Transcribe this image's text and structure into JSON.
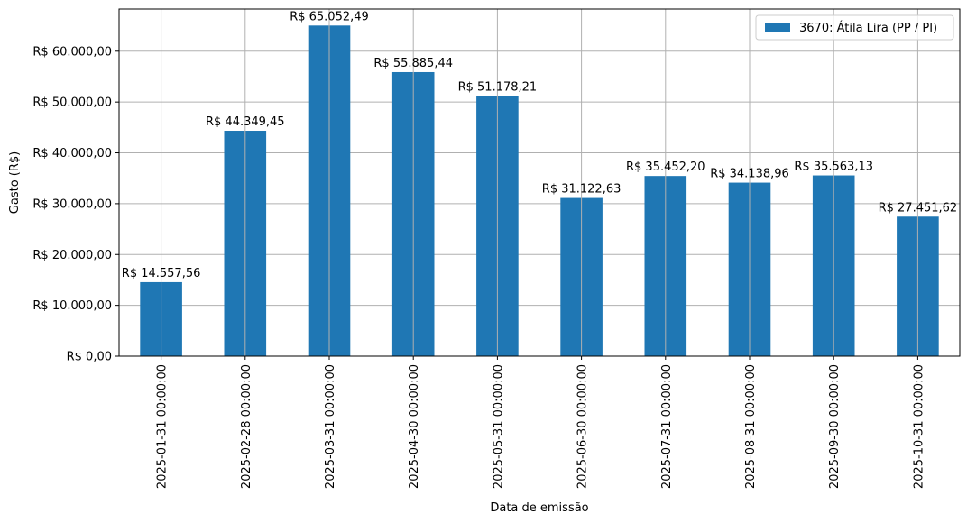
{
  "chart_data": {
    "type": "bar",
    "categories": [
      "2025-01-31 00:00:00",
      "2025-02-28 00:00:00",
      "2025-03-31 00:00:00",
      "2025-04-30 00:00:00",
      "2025-05-31 00:00:00",
      "2025-06-30 00:00:00",
      "2025-07-31 00:00:00",
      "2025-08-31 00:00:00",
      "2025-09-30 00:00:00",
      "2025-10-31 00:00:00"
    ],
    "series": [
      {
        "name": "3670: Átila Lira (PP / PI)",
        "color": "#1f77b4",
        "values": [
          14557.56,
          44349.45,
          65052.49,
          55885.44,
          51178.21,
          31122.63,
          35452.2,
          34138.96,
          35563.13,
          27451.62
        ],
        "labels": [
          "R$ 14.557,56",
          "R$ 44.349,45",
          "R$ 65.052,49",
          "R$ 55.885,44",
          "R$ 51.178,21",
          "R$ 31.122,63",
          "R$ 35.452,20",
          "R$ 34.138,96",
          "R$ 35.563,13",
          "R$ 27.451,62"
        ]
      }
    ],
    "xlabel": "Data de emissão",
    "ylabel": "Gasto (R$)",
    "ylim": [
      0,
      68300
    ],
    "yticks": [
      0,
      10000,
      20000,
      30000,
      40000,
      50000,
      60000
    ],
    "ytick_labels": [
      "R$ 0,00",
      "R$ 10.000,00",
      "R$ 20.000,00",
      "R$ 30.000,00",
      "R$ 40.000,00",
      "R$ 50.000,00",
      "R$ 60.000,00"
    ],
    "grid": true,
    "legend_position": "top-right"
  }
}
